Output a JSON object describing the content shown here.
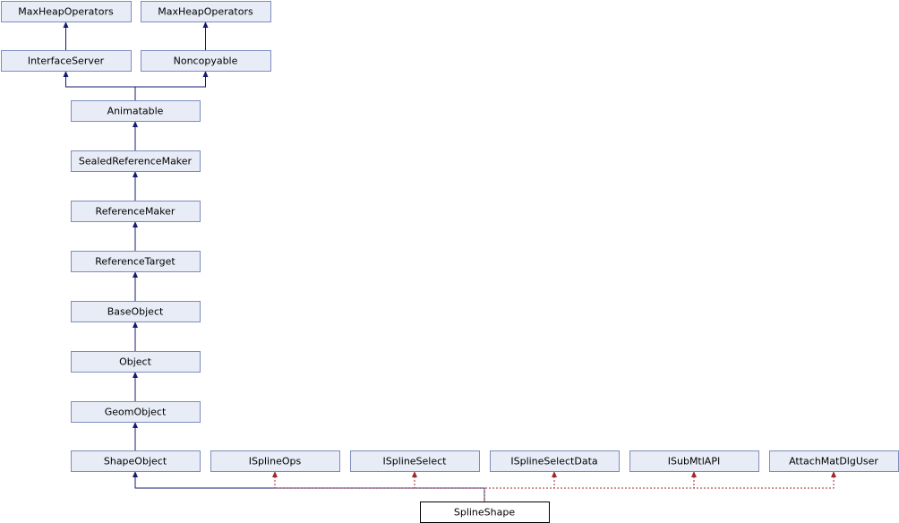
{
  "diagram": {
    "nodes": [
      {
        "id": "maxheap1",
        "label": "MaxHeapOperators",
        "current": false
      },
      {
        "id": "maxheap2",
        "label": "MaxHeapOperators",
        "current": false
      },
      {
        "id": "interfaceserver",
        "label": "InterfaceServer",
        "current": false
      },
      {
        "id": "noncopyable",
        "label": "Noncopyable",
        "current": false
      },
      {
        "id": "animatable",
        "label": "Animatable",
        "current": false
      },
      {
        "id": "sealedreferencemaker",
        "label": "SealedReferenceMaker",
        "current": false
      },
      {
        "id": "referencemaker",
        "label": "ReferenceMaker",
        "current": false
      },
      {
        "id": "referencetarget",
        "label": "ReferenceTarget",
        "current": false
      },
      {
        "id": "baseobject",
        "label": "BaseObject",
        "current": false
      },
      {
        "id": "object",
        "label": "Object",
        "current": false
      },
      {
        "id": "geomobject",
        "label": "GeomObject",
        "current": false
      },
      {
        "id": "shapeobject",
        "label": "ShapeObject",
        "current": false
      },
      {
        "id": "isplineops",
        "label": "ISplineOps",
        "current": false
      },
      {
        "id": "isplineselect",
        "label": "ISplineSelect",
        "current": false
      },
      {
        "id": "isplineselectdata",
        "label": "ISplineSelectData",
        "current": false
      },
      {
        "id": "isubmtlapi",
        "label": "ISubMtlAPI",
        "current": false
      },
      {
        "id": "attachmatdlguser",
        "label": "AttachMatDlgUser",
        "current": false
      },
      {
        "id": "splineshape",
        "label": "SplineShape",
        "current": true
      }
    ],
    "edges": [
      {
        "from": "interfaceserver",
        "to": "maxheap1",
        "style": "solid"
      },
      {
        "from": "noncopyable",
        "to": "maxheap2",
        "style": "solid"
      },
      {
        "from": "animatable",
        "to": "interfaceserver",
        "style": "solid"
      },
      {
        "from": "animatable",
        "to": "noncopyable",
        "style": "solid"
      },
      {
        "from": "sealedreferencemaker",
        "to": "animatable",
        "style": "solid"
      },
      {
        "from": "referencemaker",
        "to": "sealedreferencemaker",
        "style": "solid"
      },
      {
        "from": "referencetarget",
        "to": "referencemaker",
        "style": "solid"
      },
      {
        "from": "baseobject",
        "to": "referencetarget",
        "style": "solid"
      },
      {
        "from": "object",
        "to": "baseobject",
        "style": "solid"
      },
      {
        "from": "geomobject",
        "to": "object",
        "style": "solid"
      },
      {
        "from": "shapeobject",
        "to": "geomobject",
        "style": "solid"
      },
      {
        "from": "splineshape",
        "to": "shapeobject",
        "style": "solid"
      },
      {
        "from": "splineshape",
        "to": "isplineops",
        "style": "dashed"
      },
      {
        "from": "splineshape",
        "to": "isplineselect",
        "style": "dashed"
      },
      {
        "from": "splineshape",
        "to": "isplineselectdata",
        "style": "dashed"
      },
      {
        "from": "splineshape",
        "to": "isubmtlapi",
        "style": "dashed"
      },
      {
        "from": "splineshape",
        "to": "attachmatdlguser",
        "style": "dashed"
      }
    ]
  }
}
